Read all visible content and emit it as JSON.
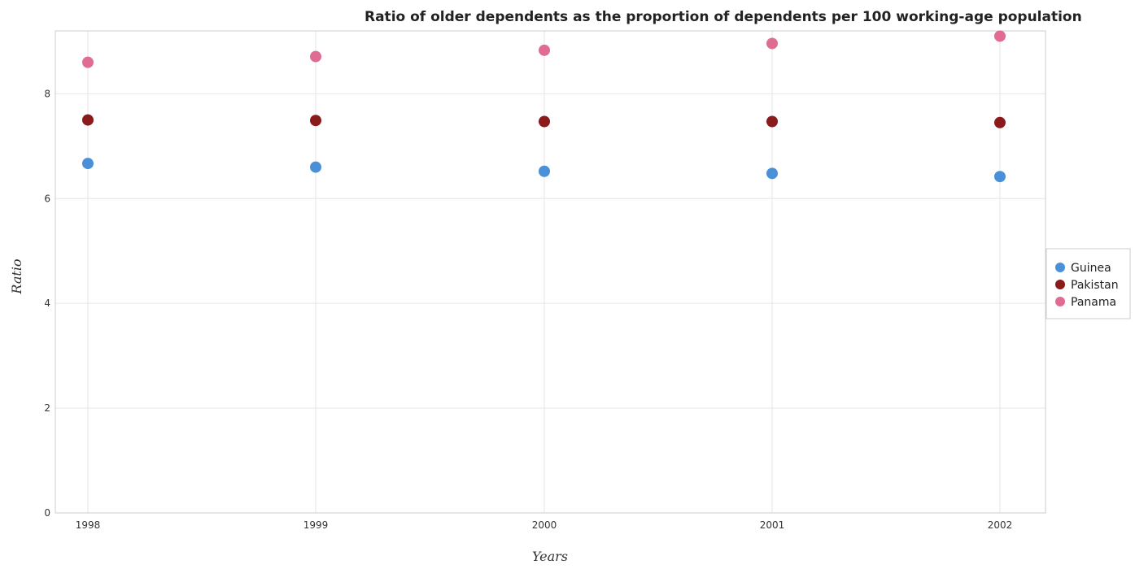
{
  "chart_data": {
    "type": "scatter",
    "title": "Ratio of older dependents as the proportion of dependents per 100 working-age population",
    "xlabel": "Years",
    "ylabel": "Ratio",
    "categories": [
      "1998",
      "1999",
      "2000",
      "2001",
      "2002"
    ],
    "ylim": [
      0,
      9.2
    ],
    "yticks": [
      0,
      2,
      4,
      6,
      8
    ],
    "grid": true,
    "legend_position": "right",
    "series": [
      {
        "name": "Guinea",
        "color": "#4a90d9",
        "values": [
          6.67,
          6.6,
          6.52,
          6.48,
          6.42
        ]
      },
      {
        "name": "Pakistan",
        "color": "#8b1a1a",
        "values": [
          7.5,
          7.49,
          7.47,
          7.47,
          7.45
        ]
      },
      {
        "name": "Panama",
        "color": "#e06c92",
        "values": [
          8.6,
          8.71,
          8.83,
          8.96,
          9.1
        ]
      }
    ]
  }
}
